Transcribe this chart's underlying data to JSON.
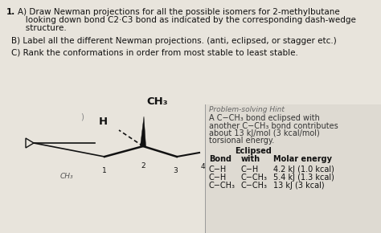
{
  "background_color": "#c8c4bc",
  "right_panel_color": "#d4d0ca",
  "title_number": "1.",
  "part_a_line1": "A) Draw Newman projections for all the possible isomers for 2-methylbutane",
  "part_a_line2": "   looking down bond C2·C3 bond as indicated by the corresponding dash-wedge",
  "part_a_line3": "   structure.",
  "part_b": "B) Label all the different Newman projections. (anti, eclipsed, or stagger etc.)",
  "part_c": "C) Rank the conformations in order from most stable to least stable.",
  "hint_title": "Problem-solving Hint",
  "hint_line1": "A C−CH₃ bond eclipsed with",
  "hint_line2": "another C−CH₃ bond contributes",
  "hint_line3": "about 13 kJ/mol (3 kcal/mol)",
  "hint_line4": "torsional energy.",
  "eclipsed_header": "Eclipsed",
  "bond_col": "Bond",
  "with_col": "with",
  "molar_col": "Molar energy",
  "table_rows": [
    [
      "C−H",
      "C−H",
      "4.2 kJ (1.0 kcal)"
    ],
    [
      "C−H",
      "C−CH₃",
      "5.4 kJ (1.3 kcal)"
    ],
    [
      "C−CH₃",
      "C−CH₃",
      "13 kJ (3 kcal)"
    ]
  ],
  "CH3_top": "CH₃",
  "H_label": "H",
  "num1": "1",
  "num2": "2",
  "num3": "3",
  "num4": "4",
  "CH3_bottom": "CH₃",
  "font_size_main": 7.5,
  "font_size_hint": 7.0,
  "text_color": "#111111",
  "hint_text_color": "#333333"
}
